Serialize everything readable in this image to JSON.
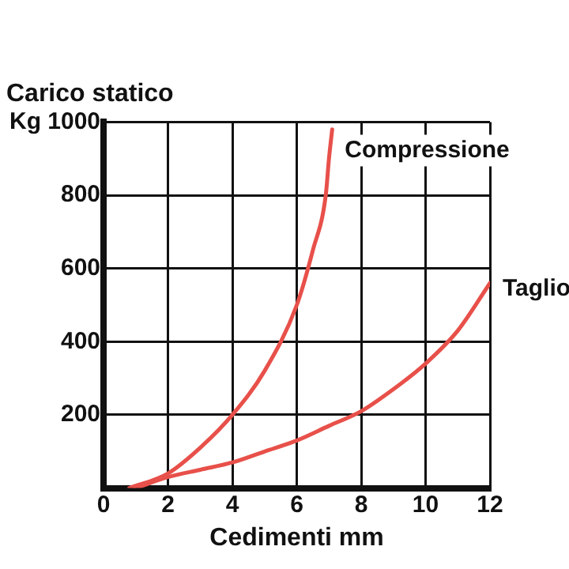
{
  "chart_data": {
    "type": "line",
    "title": "Carico statico",
    "xlabel": "Cedimenti mm",
    "xlim": [
      0,
      12
    ],
    "xticks": [
      0,
      2,
      4,
      6,
      8,
      10,
      12
    ],
    "ylim": [
      0,
      1000
    ],
    "yticks": [
      200,
      400,
      600,
      800,
      {
        "value": 1000,
        "label": "Kg 1000"
      }
    ],
    "grid": true,
    "legend": false,
    "marker": "none",
    "line_style": "solid",
    "series": [
      {
        "name": "Compressione",
        "color": "#e8504a",
        "x": [
          0.8,
          2,
          3,
          4,
          5,
          6,
          6.5,
          6.9,
          7,
          7.1
        ],
        "values": [
          0,
          40,
          110,
          200,
          320,
          500,
          650,
          800,
          900,
          980
        ]
      },
      {
        "name": "Taglio",
        "color": "#e8504a",
        "x": [
          1,
          2,
          3,
          4,
          5,
          6,
          7,
          8,
          9,
          10,
          11,
          12
        ],
        "values": [
          0,
          30,
          50,
          70,
          100,
          130,
          170,
          210,
          270,
          340,
          430,
          560
        ]
      }
    ]
  }
}
